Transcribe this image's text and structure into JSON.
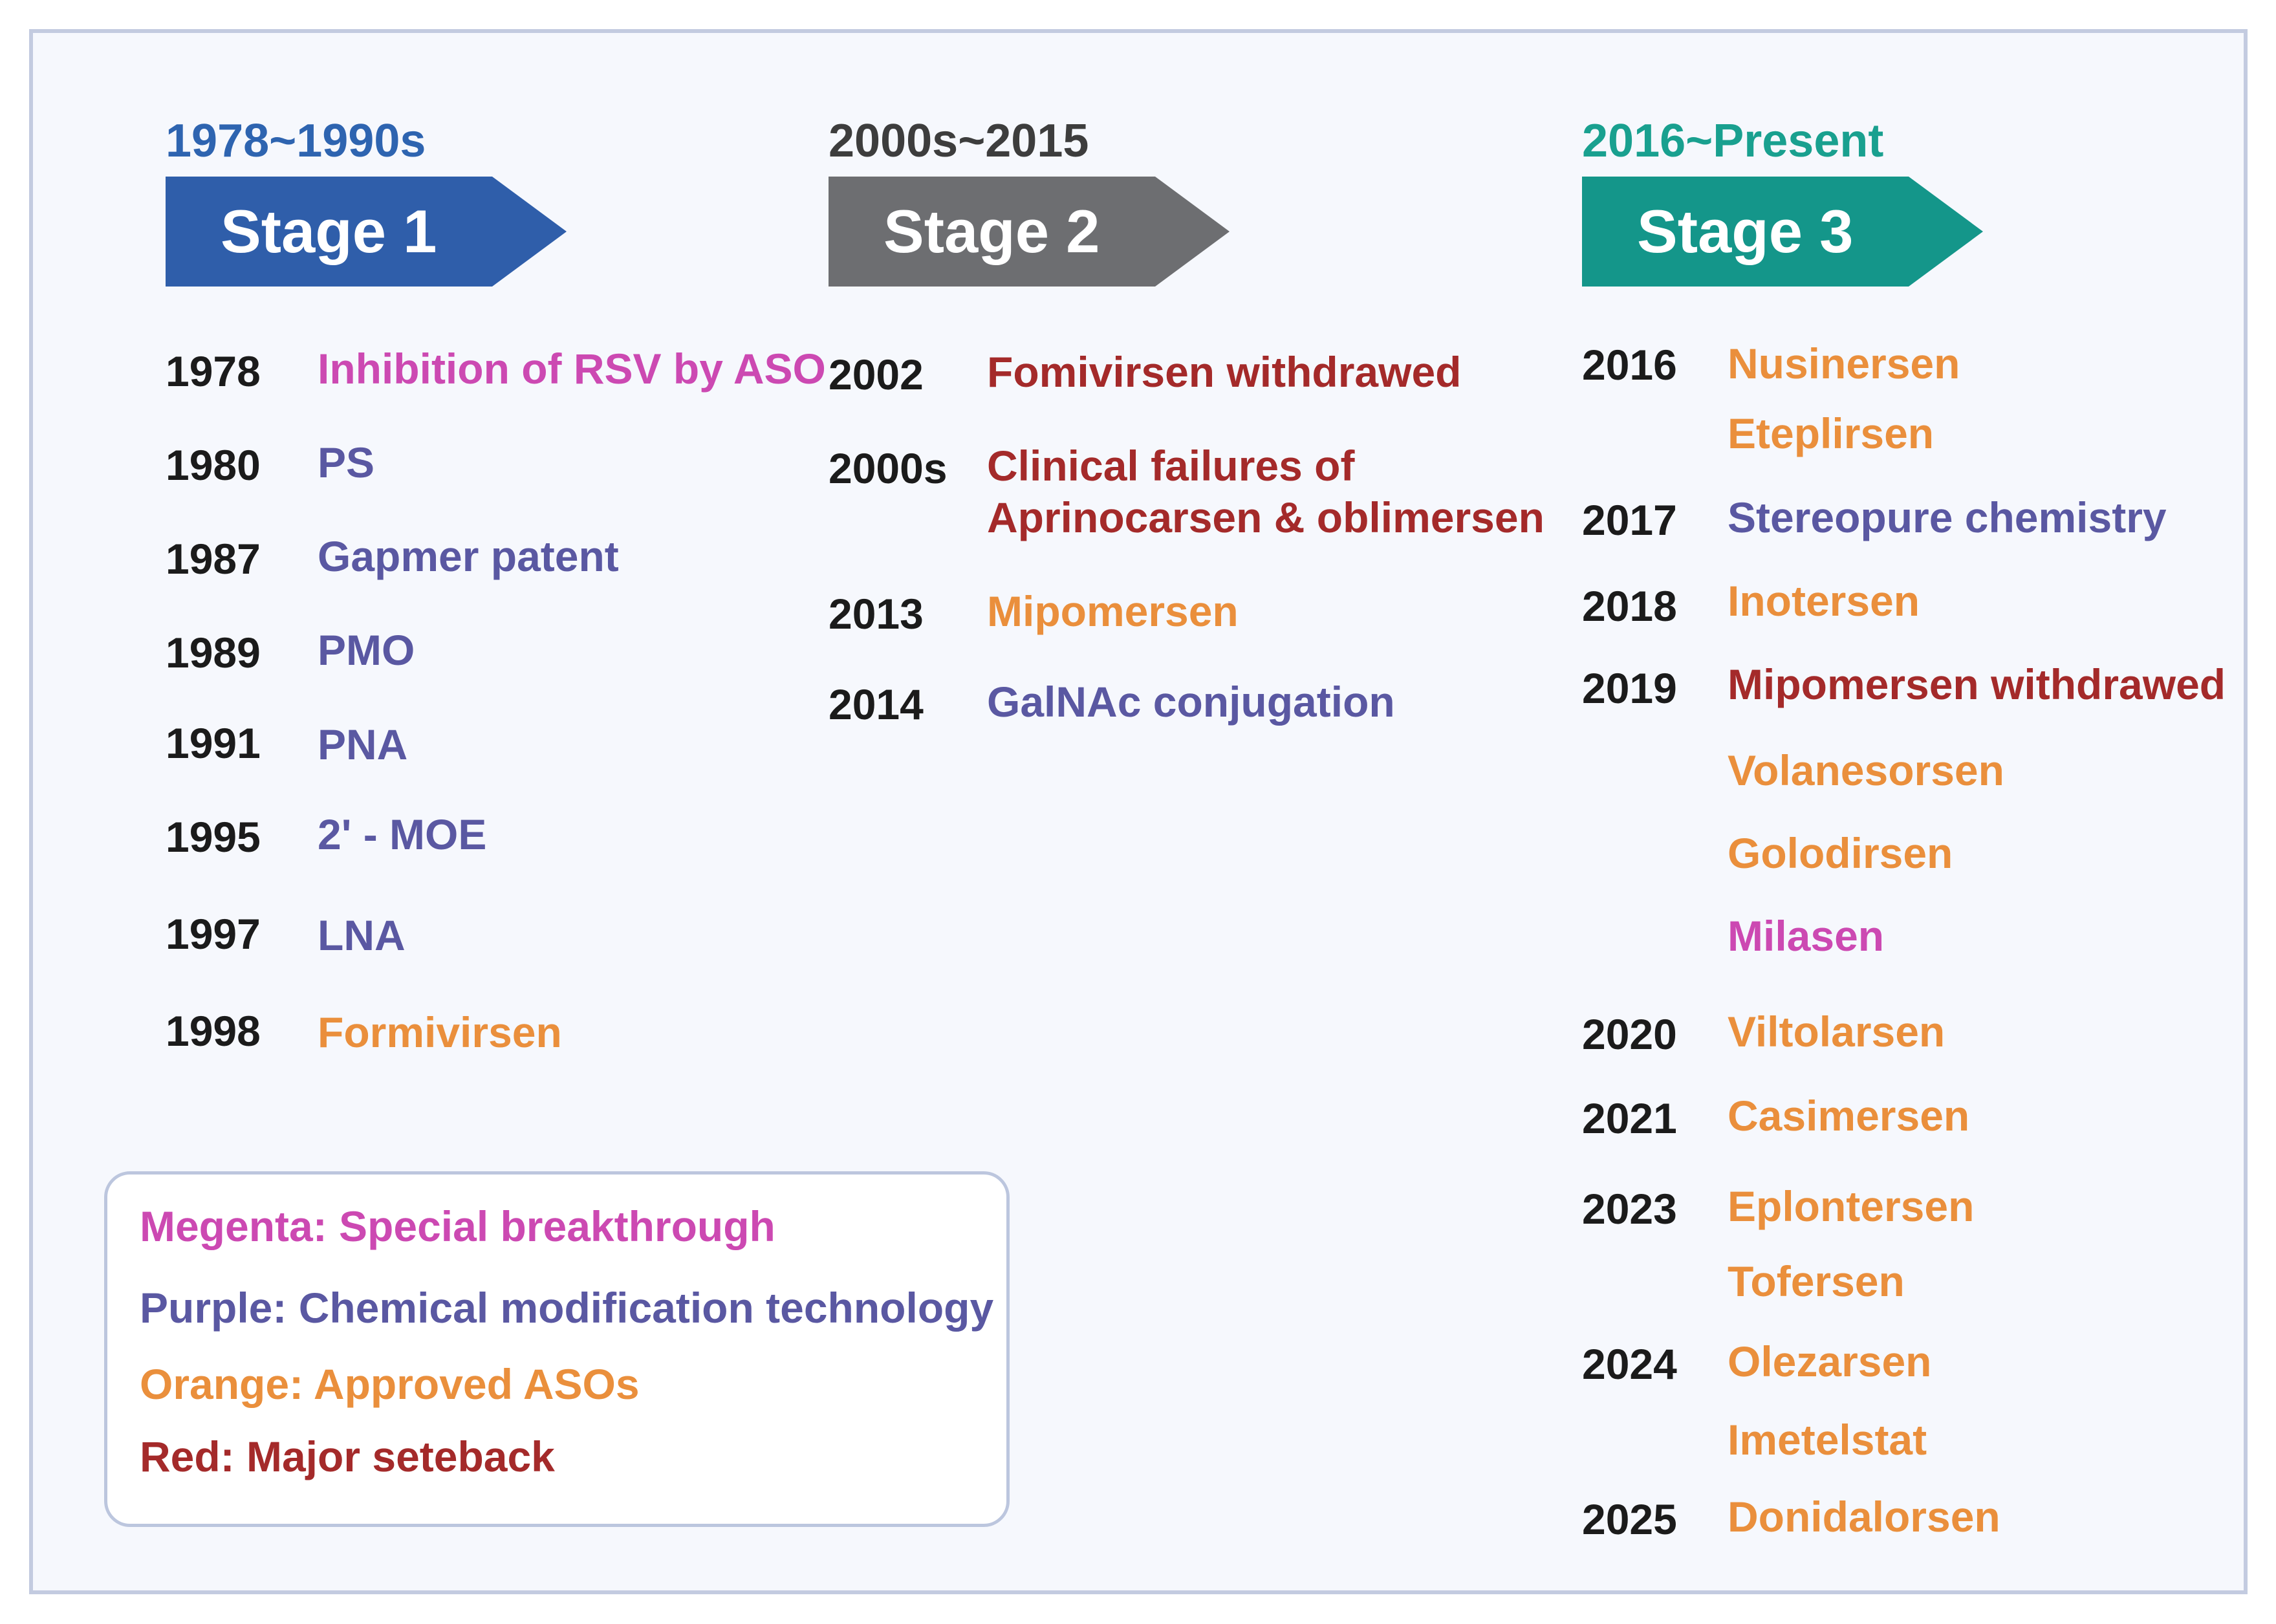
{
  "stages": [
    {
      "period": "1978~1990s",
      "label": "Stage 1",
      "color": "#2f5eaa",
      "period_color": "#2e64b0",
      "events": [
        {
          "year": "1978",
          "items": [
            {
              "text": "Inhibition of RSV by ASO",
              "category": "magenta"
            }
          ]
        },
        {
          "year": "1980",
          "items": [
            {
              "text": "PS",
              "category": "purple"
            }
          ]
        },
        {
          "year": "1987",
          "items": [
            {
              "text": "Gapmer patent",
              "category": "purple"
            }
          ]
        },
        {
          "year": "1989",
          "items": [
            {
              "text": "PMO",
              "category": "purple"
            }
          ]
        },
        {
          "year": "1991",
          "items": [
            {
              "text": "PNA",
              "category": "purple"
            }
          ]
        },
        {
          "year": "1995",
          "items": [
            {
              "text": "2' - MOE",
              "category": "purple"
            }
          ]
        },
        {
          "year": "1997",
          "items": [
            {
              "text": "LNA",
              "category": "purple"
            }
          ]
        },
        {
          "year": "1998",
          "items": [
            {
              "text": "Formivirsen",
              "category": "orange"
            }
          ]
        }
      ]
    },
    {
      "period": "2000s~2015",
      "label": "Stage 2",
      "color": "#6d6e71",
      "period_color": "#3d3d3d",
      "events": [
        {
          "year": "2002",
          "items": [
            {
              "text": "Fomivirsen withdrawed",
              "category": "red"
            }
          ]
        },
        {
          "year": "2000s",
          "items": [
            {
              "text": "Clinical failures of",
              "category": "red"
            },
            {
              "text": "Aprinocarsen & oblimersen",
              "category": "red"
            }
          ]
        },
        {
          "year": "2013",
          "items": [
            {
              "text": "Mipomersen",
              "category": "orange"
            }
          ]
        },
        {
          "year": "2014",
          "items": [
            {
              "text": "GalNAc conjugation",
              "category": "purple"
            }
          ]
        }
      ]
    },
    {
      "period": "2016~Present",
      "label": "Stage 3",
      "color": "#14968a",
      "period_color": "#19a08f",
      "events": [
        {
          "year": "2016",
          "items": [
            {
              "text": "Nusinersen",
              "category": "orange"
            },
            {
              "text": "Eteplirsen",
              "category": "orange"
            }
          ]
        },
        {
          "year": "2017",
          "items": [
            {
              "text": "Stereopure chemistry",
              "category": "purple"
            }
          ]
        },
        {
          "year": "2018",
          "items": [
            {
              "text": "Inotersen",
              "category": "orange"
            }
          ]
        },
        {
          "year": "2019",
          "items": [
            {
              "text": "Mipomersen withdrawed",
              "category": "red"
            },
            {
              "text": "Volanesorsen",
              "category": "orange"
            },
            {
              "text": "Golodirsen",
              "category": "orange"
            },
            {
              "text": "Milasen",
              "category": "magenta"
            }
          ]
        },
        {
          "year": "2020",
          "items": [
            {
              "text": "Viltolarsen",
              "category": "orange"
            }
          ]
        },
        {
          "year": "2021",
          "items": [
            {
              "text": "Casimersen",
              "category": "orange"
            }
          ]
        },
        {
          "year": "2023",
          "items": [
            {
              "text": "Eplontersen",
              "category": "orange"
            },
            {
              "text": "Tofersen",
              "category": "orange"
            }
          ]
        },
        {
          "year": "2024",
          "items": [
            {
              "text": "Olezarsen",
              "category": "orange"
            },
            {
              "text": "Imetelstat",
              "category": "orange"
            }
          ]
        },
        {
          "year": "2025",
          "items": [
            {
              "text": "Donidalorsen",
              "category": "orange"
            }
          ]
        }
      ]
    }
  ],
  "legend": [
    {
      "text": "Megenta: Special breakthrough",
      "category": "magenta"
    },
    {
      "text": "Purple: Chemical modification technology",
      "category": "purple"
    },
    {
      "text": "Orange: Approved ASOs",
      "category": "orange"
    },
    {
      "text": "Red: Major seteback",
      "category": "red"
    }
  ],
  "colors": {
    "magenta": "#cc49b2",
    "purple": "#5a58a2",
    "orange": "#ea8f3c",
    "red": "#a42a2a",
    "year": "#1b1b1b"
  }
}
